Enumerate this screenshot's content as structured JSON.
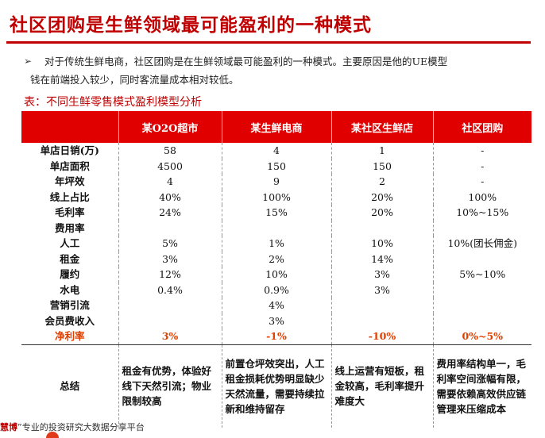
{
  "title": "社区团购是生鲜领域最可能盈利的一种模式",
  "bullet": {
    "icon": "arrow-bullet-icon",
    "line1": "对于传统生鲜电商，社区团购是在生鲜领域最可能盈利的一种模式。主要原因是他的UE模型",
    "line2": "钱在前端投入较少，同时客流量成本相对较低。"
  },
  "table_title": "表：不同生鲜零售模式盈利模型分析",
  "table": {
    "headers": [
      "",
      "某O2O超市",
      "某生鲜电商",
      "某社区生鲜店",
      "社区团购"
    ],
    "rows": [
      [
        "单店日销(万)",
        "58",
        "4",
        "1",
        "-"
      ],
      [
        "单店面积",
        "4500",
        "150",
        "150",
        "-"
      ],
      [
        "年坪效",
        "4",
        "9",
        "2",
        "-"
      ],
      [
        "线上占比",
        "40%",
        "100%",
        "20%",
        "100%"
      ],
      [
        "毛利率",
        "24%",
        "15%",
        "20%",
        "10%~15%"
      ],
      [
        "费用率",
        "",
        "",
        "",
        ""
      ],
      [
        "人工",
        "5%",
        "1%",
        "10%",
        "10%(团长佣金)"
      ],
      [
        "租金",
        "3%",
        "2%",
        "14%",
        ""
      ],
      [
        "履约",
        "12%",
        "10%",
        "3%",
        "5%~10%"
      ],
      [
        "水电",
        "0.4%",
        "0.9%",
        "3%",
        ""
      ],
      [
        "营销引流",
        "",
        "4%",
        "",
        ""
      ],
      [
        "会员费收入",
        "",
        "3%",
        "",
        ""
      ]
    ],
    "net_profit": [
      "净利率",
      "3%",
      "-1%",
      "-10%",
      "0%~5%"
    ],
    "summary": [
      "总结",
      "租金有优势，体验好线下天然引流；物业限制较高",
      "前置仓坪效突出，人工租金损耗优势明显缺少天然流量，需要持续拉新和维持留存",
      "线上运营有短板，租金较高，毛利率提升难度大",
      "费用率结构单一，毛利率空间涨幅有限，需要依赖高效供应链管理来压缩成本"
    ]
  },
  "footer": {
    "brand": "慧博",
    "text": "”专业的投资研究大数据分享平台"
  },
  "colors": {
    "accent_red": "#c00000",
    "header_red": "#e00000",
    "net_profit_orange": "#e04000"
  }
}
